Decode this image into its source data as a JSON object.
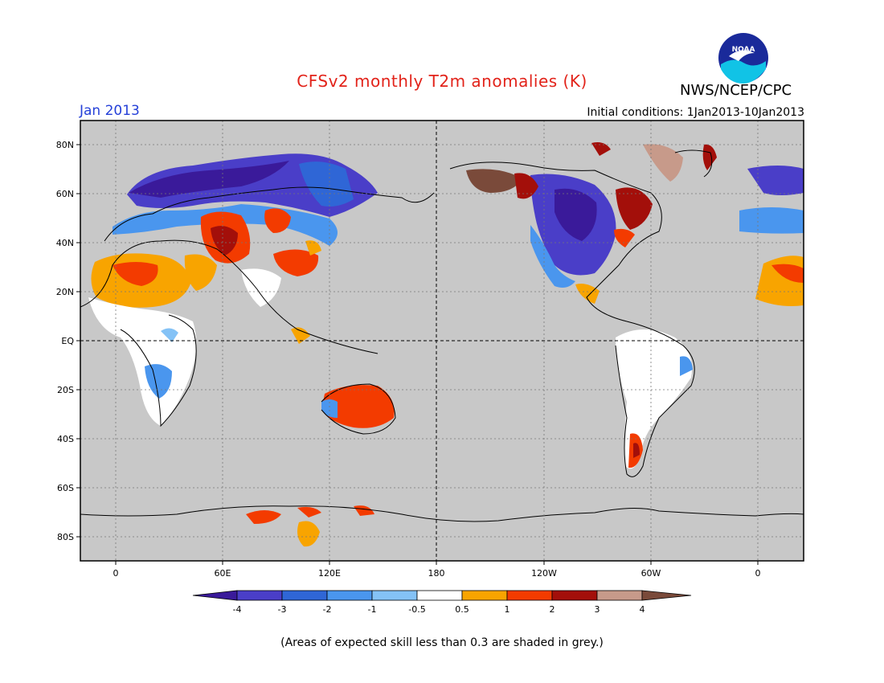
{
  "header": {
    "title": "CFSv2 monthly T2m anomalies (K)",
    "agency": "NWS/NCEP/CPC",
    "month": "Jan 2013",
    "initial_conditions": "Initial conditions: 1Jan2013-10Jan2013",
    "logo_text": "NOAA"
  },
  "map": {
    "lat_labels": [
      "80N",
      "60N",
      "40N",
      "20N",
      "EQ",
      "20S",
      "40S",
      "60S",
      "80S"
    ],
    "lon_labels": [
      "0",
      "60E",
      "120E",
      "180",
      "120W",
      "60W",
      "0"
    ],
    "background_color": "#c8c8c8"
  },
  "colorbar": {
    "levels": [
      "-4",
      "-3",
      "-2",
      "-1",
      "-0.5",
      "0.5",
      "1",
      "2",
      "3",
      "4"
    ],
    "colors": {
      "below_-4": "#3a1a9a",
      "-4_-3": "#4a3ec8",
      "-3_-2": "#2f66d6",
      "-2_-1": "#4a96ee",
      "-1_-0.5": "#84c2f6",
      "-0.5_0.5": "#ffffff",
      "0.5_1": "#f8a400",
      "1_2": "#f33b00",
      "2_3": "#a30f0a",
      "3_4": "#c79a8a",
      "above_4": "#7a4a3a"
    }
  },
  "caption": "(Areas of expected skill less than 0.3 are shaded in grey.)"
}
